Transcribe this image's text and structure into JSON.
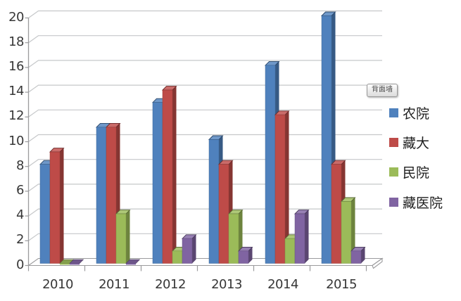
{
  "chart_data": {
    "type": "bar",
    "subtype": "3d-clustered-column",
    "title": "",
    "categories": [
      "2010",
      "2011",
      "2012",
      "2013",
      "2014",
      "2015"
    ],
    "series": [
      {
        "name": "农院",
        "color": "#4F81BD",
        "values": [
          8,
          11,
          13,
          10,
          16,
          20
        ]
      },
      {
        "name": "藏大",
        "color": "#BE4B48",
        "values": [
          9,
          11,
          14,
          8,
          12,
          8
        ]
      },
      {
        "name": "民院",
        "color": "#9BBB59",
        "values": [
          0,
          4,
          1,
          4,
          2,
          5
        ]
      },
      {
        "name": "藏医院",
        "color": "#8064A2",
        "values": [
          0,
          0,
          2,
          1,
          4,
          1
        ]
      }
    ],
    "ylim": [
      0,
      20
    ],
    "y_tick_step": 2,
    "y_ticks": [
      0,
      2,
      4,
      6,
      8,
      10,
      12,
      14,
      16,
      18,
      20
    ],
    "grid": true,
    "legend_position": "right"
  },
  "tooltip": {
    "label": "背面墙"
  },
  "legend": {
    "items": [
      {
        "label": "农院",
        "color": "#4F81BD"
      },
      {
        "label": "藏大",
        "color": "#BE4B48"
      },
      {
        "label": "民院",
        "color": "#9BBB59"
      },
      {
        "label": "藏医院",
        "color": "#8064A2"
      }
    ]
  }
}
